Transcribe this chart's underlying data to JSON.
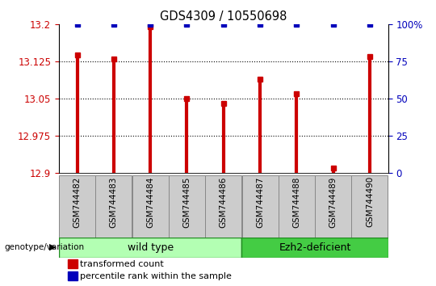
{
  "title": "GDS4309 / 10550698",
  "samples": [
    "GSM744482",
    "GSM744483",
    "GSM744484",
    "GSM744485",
    "GSM744486",
    "GSM744487",
    "GSM744488",
    "GSM744489",
    "GSM744490"
  ],
  "transformed_counts": [
    13.138,
    13.13,
    13.195,
    13.05,
    13.04,
    13.09,
    13.06,
    12.91,
    13.135
  ],
  "percentile_ranks": [
    100,
    100,
    100,
    100,
    100,
    100,
    100,
    100,
    100
  ],
  "ylim": [
    12.9,
    13.2
  ],
  "yticks": [
    12.9,
    12.975,
    13.05,
    13.125,
    13.2
  ],
  "ytick_labels": [
    "12.9",
    "12.975",
    "13.05",
    "13.125",
    "13.2"
  ],
  "right_yticks": [
    0,
    25,
    50,
    75,
    100
  ],
  "right_ytick_labels": [
    "0",
    "25",
    "50",
    "75",
    "100%"
  ],
  "bar_color": "#cc0000",
  "dot_color": "#0000bb",
  "wt_indices": [
    0,
    1,
    2,
    3,
    4
  ],
  "ez_indices": [
    5,
    6,
    7,
    8
  ],
  "wt_label": "wild type",
  "ez_label": "Ezh2-deficient",
  "wt_color": "#b3ffb3",
  "ez_color": "#44cc44",
  "group_label": "genotype/variation",
  "legend_items": [
    {
      "color": "#cc0000",
      "label": "transformed count"
    },
    {
      "color": "#0000bb",
      "label": "percentile rank within the sample"
    }
  ],
  "sample_box_color": "#cccccc",
  "sample_box_edge": "#888888",
  "bar_linewidth": 3.0
}
